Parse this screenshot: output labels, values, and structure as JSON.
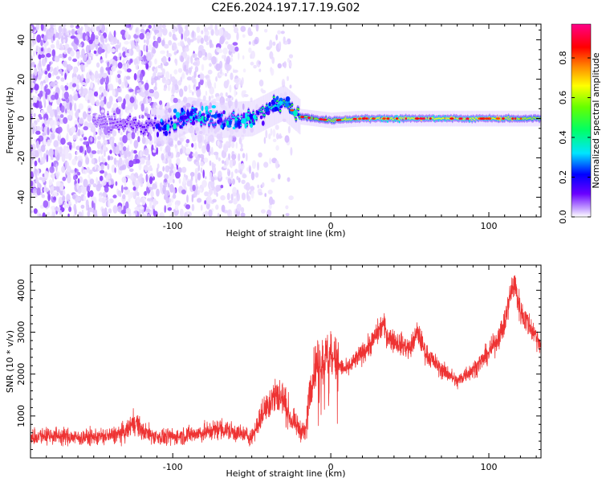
{
  "title": "C2E6.2024.197.17.19.G02",
  "chart_data": [
    {
      "type": "heatmap",
      "xlabel": "Height of straight line (km)",
      "ylabel": "Frequency (Hz)",
      "xlim": [
        -190,
        133
      ],
      "ylim": [
        -50,
        48
      ],
      "x_ticks": [
        -100,
        0,
        100
      ],
      "y_ticks": [
        -40,
        -20,
        0,
        20,
        40
      ],
      "grid": false,
      "colorbar": {
        "label": "Normalized spectral amplitude",
        "range": [
          0,
          0.97
        ],
        "ticks": [
          0.0,
          0.2,
          0.4,
          0.6,
          0.8
        ],
        "colormap": [
          "#ffffff",
          "#c9a8ff",
          "#6a00ff",
          "#0000ff",
          "#00e5ff",
          "#00ff66",
          "#66ff00",
          "#ffff00",
          "#ff8800",
          "#ff0000",
          "#ff0088"
        ]
      },
      "signal_track": [
        {
          "x": -145,
          "y": -2,
          "amp": 0.15
        },
        {
          "x": -105,
          "y": -4,
          "amp": 0.25
        },
        {
          "x": -90,
          "y": 2,
          "amp": 0.4
        },
        {
          "x": -70,
          "y": -1,
          "amp": 0.35
        },
        {
          "x": -50,
          "y": 0,
          "amp": 0.45
        },
        {
          "x": -30,
          "y": 8,
          "amp": 0.55
        },
        {
          "x": -20,
          "y": 1,
          "amp": 0.6
        },
        {
          "x": 0,
          "y": -1,
          "amp": 0.65
        },
        {
          "x": 20,
          "y": 0,
          "amp": 0.7
        },
        {
          "x": 100,
          "y": 0,
          "amp": 0.7
        },
        {
          "x": 130,
          "y": 0,
          "amp": 0.65
        }
      ]
    },
    {
      "type": "line",
      "xlabel": "Height of straight line (km)",
      "ylabel": "SNR (10 * v/v)",
      "xlim": [
        -190,
        133
      ],
      "ylim": [
        0,
        4600
      ],
      "x_ticks": [
        -100,
        0,
        100
      ],
      "y_ticks": [
        1000,
        2000,
        3000,
        4000
      ],
      "grid": false,
      "color": "#ee3333",
      "series": [
        {
          "x": [
            -190,
            -180,
            -170,
            -160,
            -150,
            -140,
            -130,
            -124,
            -120,
            -110,
            -100,
            -90,
            -80,
            -70,
            -60,
            -50,
            -45,
            -40,
            -35,
            -30,
            -25,
            -20,
            -16,
            -14,
            -10,
            -5,
            0,
            5,
            10,
            15,
            20,
            25,
            30,
            33,
            36,
            40,
            45,
            50,
            55,
            60,
            65,
            70,
            75,
            80,
            85,
            90,
            95,
            100,
            105,
            110,
            113,
            116,
            120,
            125,
            130,
            133
          ],
          "values": [
            500,
            550,
            520,
            480,
            500,
            520,
            600,
            900,
            650,
            500,
            500,
            550,
            600,
            700,
            600,
            500,
            900,
            1300,
            1500,
            1400,
            900,
            700,
            600,
            1500,
            2200,
            2300,
            2500,
            2200,
            2100,
            2300,
            2500,
            2700,
            3000,
            3200,
            2900,
            2800,
            2700,
            2600,
            3000,
            2500,
            2300,
            2100,
            2000,
            1800,
            2000,
            2100,
            2300,
            2500,
            2800,
            3200,
            3800,
            4200,
            3500,
            3200,
            2900,
            2700
          ]
        }
      ]
    }
  ]
}
